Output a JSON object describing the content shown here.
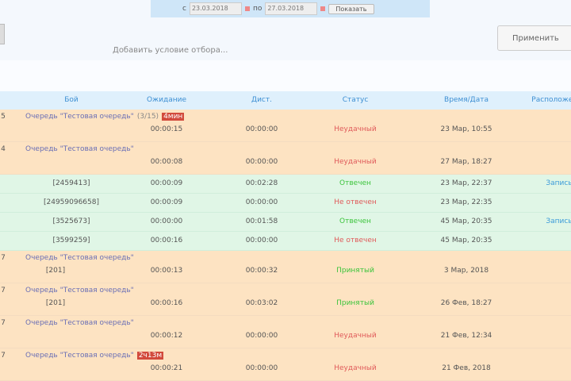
{
  "filter": {
    "from_label": "с",
    "from": "23.03.2018",
    "to_label": "по",
    "to": "27.03.2018",
    "show": "Показать"
  },
  "condition": "Добавить условие отбора...",
  "apply": "Применить",
  "headers": [
    "Бой",
    "Ожидание",
    "Дист.",
    "Статус",
    "Время/Дата",
    "Расположение"
  ],
  "rows": [
    {
      "type": "group",
      "n": "5",
      "queue": "Очередь \"Тестовая очередь\"",
      "extra": "(3/15)",
      "tag": "4мин",
      "wait": "00:00:15",
      "dist": "00:00:00",
      "status": "Неудачный",
      "st": "bad",
      "time": "23 Мар, 10:55"
    },
    {
      "type": "group",
      "n": "4",
      "queue": "Очередь \"Тестовая очередь\"",
      "wait": "00:00:08",
      "dist": "00:00:00",
      "status": "Неудачный",
      "st": "bad",
      "time": "27 Мар, 18:27"
    },
    {
      "type": "call",
      "num": "[2459413]",
      "wait": "00:00:09",
      "dist": "00:02:28",
      "status": "Отвечен",
      "st": "ok",
      "time": "23 Мар, 22:37",
      "link": "Запись"
    },
    {
      "type": "call",
      "num": "[24959096658]",
      "wait": "00:00:09",
      "dist": "00:00:00",
      "status": "Не отвечен",
      "st": "bad",
      "time": "23 Мар, 22:35"
    },
    {
      "type": "call",
      "num": "[3525673]",
      "wait": "00:00:00",
      "dist": "00:01:58",
      "status": "Отвечен",
      "st": "ok",
      "time": "45 Мар, 20:35",
      "link": "Запись"
    },
    {
      "type": "call",
      "num": "[3599259]",
      "wait": "00:00:16",
      "dist": "00:00:00",
      "status": "Не отвечен",
      "st": "bad",
      "time": "45 Мар, 20:35"
    },
    {
      "type": "group",
      "n": "7",
      "queue": "Очередь \"Тестовая очередь\"",
      "num": "[201]",
      "wait": "00:00:13",
      "dist": "00:00:32",
      "status": "Принятый",
      "st": "ok",
      "time": "3 Мар, 2018"
    },
    {
      "type": "group",
      "n": "7",
      "queue": "Очередь \"Тестовая очередь\"",
      "num": "[201]",
      "wait": "00:00:16",
      "dist": "00:03:02",
      "status": "Принятый",
      "st": "ok",
      "time": "26 Фев, 18:27"
    },
    {
      "type": "group",
      "n": "7",
      "queue": "Очередь \"Тестовая очередь\"",
      "wait": "00:00:12",
      "dist": "00:00:00",
      "status": "Неудачный",
      "st": "bad",
      "time": "21 Фев, 12:34"
    },
    {
      "type": "group",
      "n": "7",
      "queue": "Очередь \"Тестовая очередь\"",
      "tag": "2ч13м",
      "wait": "00:00:21",
      "dist": "00:00:00",
      "status": "Неудачный",
      "st": "bad",
      "time": "21 Фев, 2018"
    }
  ]
}
